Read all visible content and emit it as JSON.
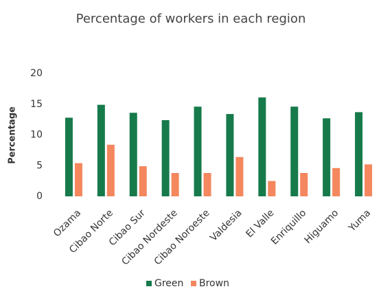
{
  "chart_data": {
    "type": "bar",
    "title": "Percentage of workers in each region",
    "y_label": "Percentage",
    "categories": [
      "Ozama",
      "Cibao Norte",
      "Cibao Sur",
      "Cibao Nordeste",
      "Cibao Noroeste",
      "Valdesia",
      "El Valle",
      "Enriquillo",
      "Higuamo",
      "Yuma"
    ],
    "series": [
      {
        "name": "Green",
        "color": "#177a4b",
        "values": [
          12.8,
          14.9,
          13.6,
          12.4,
          14.6,
          13.4,
          16.1,
          14.6,
          12.7,
          13.7
        ]
      },
      {
        "name": "Brown",
        "color": "#f4875e",
        "values": [
          5.4,
          8.4,
          4.9,
          3.8,
          3.8,
          6.4,
          2.5,
          3.8,
          4.6,
          5.2
        ]
      }
    ],
    "ylim": [
      0,
      20
    ],
    "yticks": [
      0,
      5,
      10,
      15,
      20
    ],
    "grid": false,
    "legend": "bottom"
  }
}
